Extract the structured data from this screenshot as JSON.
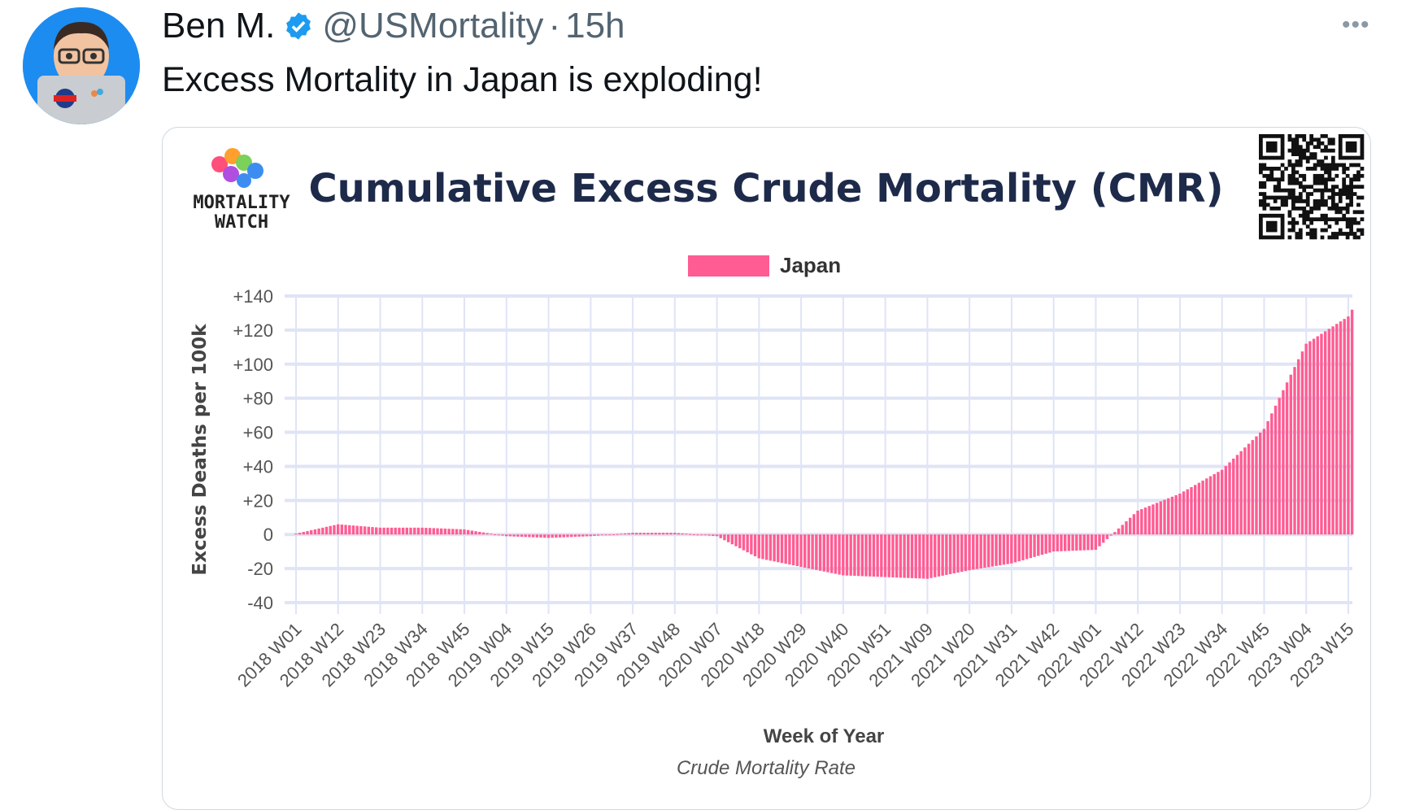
{
  "tweet": {
    "author_name": "Ben M.",
    "handle": "@USMortality",
    "separator": "·",
    "time": "15h",
    "text": "Excess Mortality in Japan is exploding!",
    "more_icon": "more-horizontal-icon",
    "verified_icon": "verified-badge-icon"
  },
  "logo": {
    "line1": "MORTALITY",
    "line2": "WATCH"
  },
  "colors": {
    "bar": "#ff5c93",
    "grid": "#dfe4f6",
    "title": "#1e2a4a",
    "verified": "#1d9bf0"
  },
  "chart_data": {
    "type": "bar",
    "title": "Cumulative Excess Crude Mortality (CMR)",
    "legend": [
      {
        "label": "Japan",
        "color": "#ff5c93"
      }
    ],
    "legend_position": "top-center",
    "xlabel": "Week of Year",
    "subtitle": "Crude Mortality Rate",
    "ylabel": "Excess Deaths per 100k",
    "ylim": [
      -40,
      140
    ],
    "yticks": [
      "+140",
      "+120",
      "+100",
      "+80",
      "+60",
      "+40",
      "+20",
      "0",
      "-20",
      "-40"
    ],
    "ytick_values": [
      140,
      120,
      100,
      80,
      60,
      40,
      20,
      0,
      -20,
      -40
    ],
    "grid": true,
    "tick_step_weeks": 11,
    "x": [
      "2018 W01",
      "2018 W12",
      "2018 W23",
      "2018 W34",
      "2018 W45",
      "2019 W04",
      "2019 W15",
      "2019 W26",
      "2019 W37",
      "2019 W48",
      "2020 W07",
      "2020 W18",
      "2020 W29",
      "2020 W40",
      "2020 W51",
      "2021 W09",
      "2021 W20",
      "2021 W31",
      "2021 W42",
      "2022 W01",
      "2022 W12",
      "2022 W23",
      "2022 W34",
      "2022 W45",
      "2023 W04",
      "2023 W15"
    ],
    "values": [
      0.5,
      6,
      4,
      4,
      3,
      -1,
      -2,
      -1,
      1,
      1,
      -1,
      -14,
      -19,
      -24,
      -25,
      -26,
      -21,
      -17,
      -10,
      -9,
      14,
      24,
      38,
      62,
      112,
      128
    ],
    "final": {
      "week": "2023 W16",
      "value": 132
    }
  }
}
